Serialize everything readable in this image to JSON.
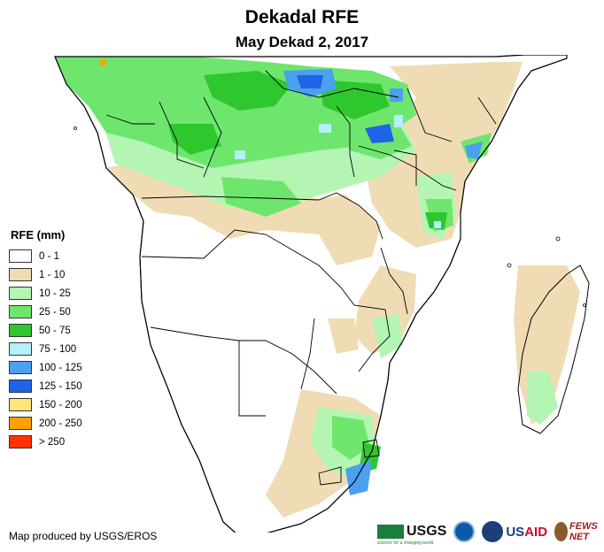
{
  "header": {
    "title": "Dekadal RFE",
    "subtitle": "May Dekad 2, 2017"
  },
  "legend": {
    "title": "RFE (mm)",
    "items": [
      {
        "label": "0 - 1",
        "color": "#ffffff"
      },
      {
        "label": "1 - 10",
        "color": "#f0dcb4"
      },
      {
        "label": "10 - 25",
        "color": "#b4f5b4"
      },
      {
        "label": "25 - 50",
        "color": "#6ee66e"
      },
      {
        "label": "50 - 75",
        "color": "#2ec82e"
      },
      {
        "label": "75 - 100",
        "color": "#b4f0fa"
      },
      {
        "label": "100 - 125",
        "color": "#4ba0f0"
      },
      {
        "label": "125 - 150",
        "color": "#1e64e6"
      },
      {
        "label": "150 - 200",
        "color": "#ffe678"
      },
      {
        "label": "200 - 250",
        "color": "#ffa000"
      },
      {
        "label": "> 250",
        "color": "#ff3200"
      }
    ]
  },
  "footer": {
    "credit": "Map produced by USGS/EROS",
    "logos": {
      "usgs": "USGS",
      "usgs_tagline": "science for a changing world",
      "usaid": {
        "us": "US",
        "aid": "AID"
      },
      "fews": "FEWS NET"
    }
  },
  "colors": {
    "border": "#000000",
    "land_none": "#ffffff",
    "land_light": "#f0dcb4",
    "green_light": "#b4f5b4",
    "green_mid": "#6ee66e",
    "green_dark": "#2ec82e",
    "cyan": "#b4f0fa",
    "blue": "#4ba0f0",
    "blue_dark": "#1e64e6",
    "orange": "#ffa000"
  }
}
